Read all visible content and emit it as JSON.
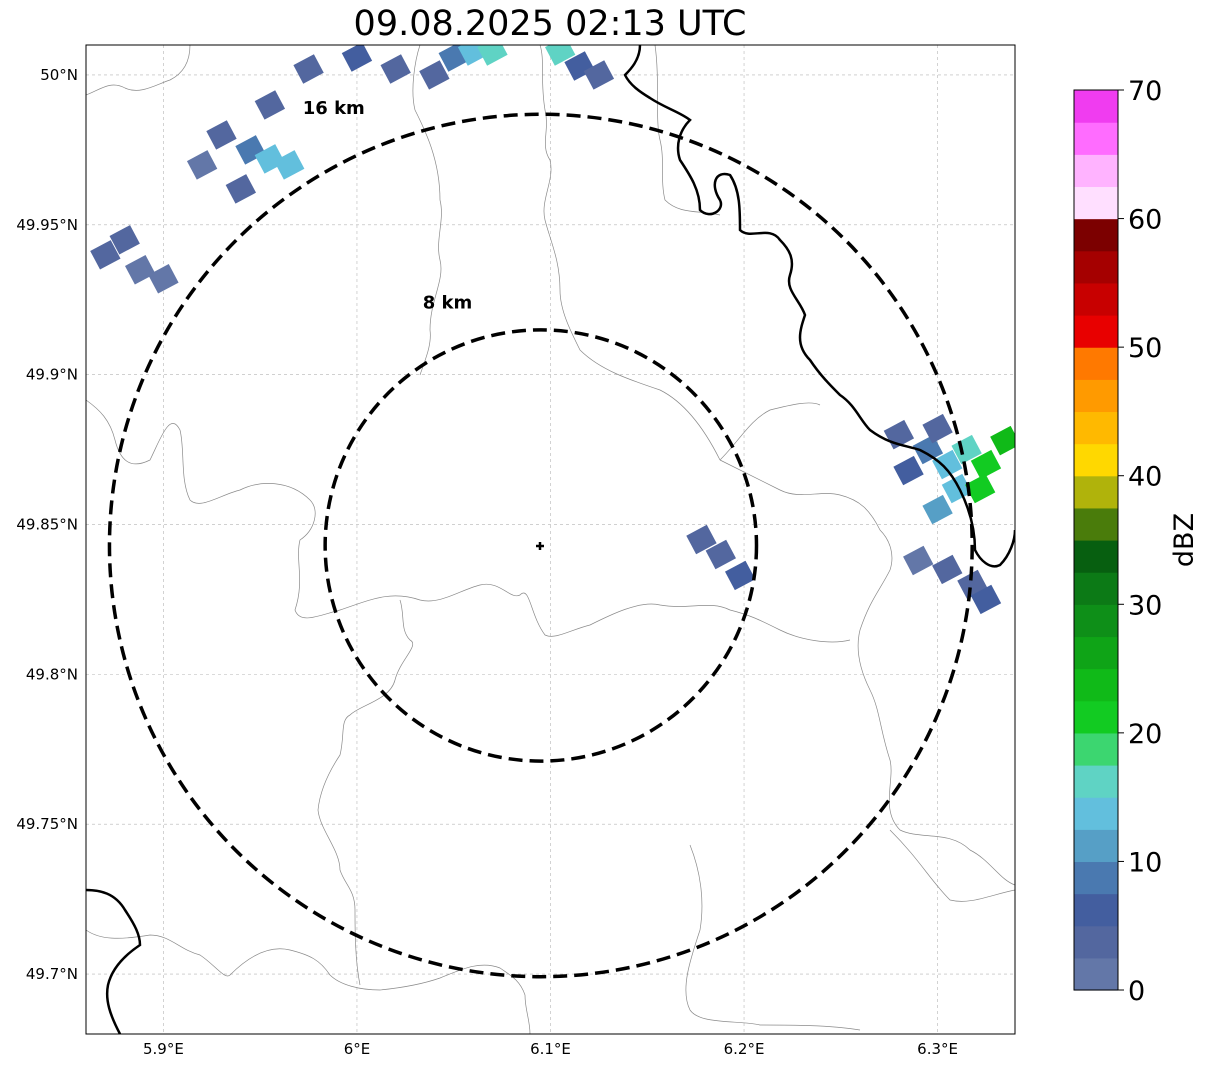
{
  "title": "09.08.2025 02:13 UTC",
  "map": {
    "lon_range": [
      5.86,
      6.34
    ],
    "lat_range": [
      49.68,
      50.01
    ],
    "lon_ticks": [
      {
        "v": 5.9,
        "label": "5.9°E"
      },
      {
        "v": 6.0,
        "label": "6°E"
      },
      {
        "v": 6.1,
        "label": "6.1°E"
      },
      {
        "v": 6.2,
        "label": "6.2°E"
      },
      {
        "v": 6.3,
        "label": "6.3°E"
      }
    ],
    "lat_ticks": [
      {
        "v": 50.0,
        "label": "50°N"
      },
      {
        "v": 49.95,
        "label": "49.95°N"
      },
      {
        "v": 49.9,
        "label": "49.9°N"
      },
      {
        "v": 49.85,
        "label": "49.85°N"
      },
      {
        "v": 49.8,
        "label": "49.8°N"
      },
      {
        "v": 49.75,
        "label": "49.75°N"
      },
      {
        "v": 49.7,
        "label": "49.7°N"
      }
    ],
    "center": {
      "lon": 6.095,
      "lat": 49.843
    },
    "rings": [
      {
        "km": 8,
        "label": "8 km",
        "label_lon": 6.034,
        "label_lat": 49.922
      },
      {
        "km": 16,
        "label": "16 km",
        "label_lon": 5.972,
        "label_lat": 49.987
      }
    ],
    "gridlines": true
  },
  "colorbar": {
    "label": "dBZ",
    "min": 0,
    "max": 70,
    "tick_values": [
      0,
      10,
      20,
      30,
      40,
      50,
      60,
      70
    ],
    "tick_labels": [
      "0",
      "10",
      "20",
      "30",
      "40",
      "50",
      "60",
      "70"
    ],
    "colors": [
      "#6377a8",
      "#53679f",
      "#435e9f",
      "#4a79b0",
      "#569fc6",
      "#62bfdd",
      "#5fd3c4",
      "#3cd670",
      "#12cb22",
      "#10ba18",
      "#0fa417",
      "#0e8f18",
      "#0c7a16",
      "#075f10",
      "#4a7c0b",
      "#b0b30b",
      "#ffd800",
      "#ffb900",
      "#ff9a00",
      "#ff7900",
      "#e80000",
      "#c80000",
      "#a50000",
      "#7c0000",
      "#ffdfff",
      "#ffb3ff",
      "#ff6cff",
      "#f03cf0"
    ]
  },
  "cells": [
    {
      "lon": 5.88,
      "lat": 49.945,
      "dbz": 4
    },
    {
      "lon": 5.87,
      "lat": 49.94,
      "dbz": 3
    },
    {
      "lon": 5.888,
      "lat": 49.935,
      "dbz": 2
    },
    {
      "lon": 5.9,
      "lat": 49.932,
      "dbz": 2
    },
    {
      "lon": 5.93,
      "lat": 49.98,
      "dbz": 4
    },
    {
      "lon": 5.945,
      "lat": 49.975,
      "dbz": 9
    },
    {
      "lon": 5.955,
      "lat": 49.972,
      "dbz": 13
    },
    {
      "lon": 5.965,
      "lat": 49.97,
      "dbz": 14
    },
    {
      "lon": 5.94,
      "lat": 49.962,
      "dbz": 3
    },
    {
      "lon": 5.92,
      "lat": 49.97,
      "dbz": 2
    },
    {
      "lon": 5.955,
      "lat": 49.99,
      "dbz": 3
    },
    {
      "lon": 5.975,
      "lat": 50.002,
      "dbz": 4
    },
    {
      "lon": 6.0,
      "lat": 50.006,
      "dbz": 5
    },
    {
      "lon": 6.02,
      "lat": 50.002,
      "dbz": 4
    },
    {
      "lon": 6.04,
      "lat": 50.0,
      "dbz": 3
    },
    {
      "lon": 6.05,
      "lat": 50.006,
      "dbz": 8
    },
    {
      "lon": 6.06,
      "lat": 50.008,
      "dbz": 13
    },
    {
      "lon": 6.07,
      "lat": 50.008,
      "dbz": 17
    },
    {
      "lon": 6.105,
      "lat": 50.008,
      "dbz": 17
    },
    {
      "lon": 6.115,
      "lat": 50.003,
      "dbz": 5
    },
    {
      "lon": 6.125,
      "lat": 50.0,
      "dbz": 3
    },
    {
      "lon": 6.178,
      "lat": 49.845,
      "dbz": 4
    },
    {
      "lon": 6.188,
      "lat": 49.84,
      "dbz": 3
    },
    {
      "lon": 6.198,
      "lat": 49.833,
      "dbz": 5
    },
    {
      "lon": 6.28,
      "lat": 49.88,
      "dbz": 3
    },
    {
      "lon": 6.285,
      "lat": 49.868,
      "dbz": 5
    },
    {
      "lon": 6.295,
      "lat": 49.875,
      "dbz": 8
    },
    {
      "lon": 6.3,
      "lat": 49.882,
      "dbz": 3
    },
    {
      "lon": 6.305,
      "lat": 49.87,
      "dbz": 13
    },
    {
      "lon": 6.31,
      "lat": 49.862,
      "dbz": 14
    },
    {
      "lon": 6.315,
      "lat": 49.875,
      "dbz": 16
    },
    {
      "lon": 6.325,
      "lat": 49.87,
      "dbz": 22
    },
    {
      "lon": 6.335,
      "lat": 49.878,
      "dbz": 23
    },
    {
      "lon": 6.322,
      "lat": 49.862,
      "dbz": 20
    },
    {
      "lon": 6.3,
      "lat": 49.855,
      "dbz": 12
    },
    {
      "lon": 6.29,
      "lat": 49.838,
      "dbz": 2
    },
    {
      "lon": 6.305,
      "lat": 49.835,
      "dbz": 4
    },
    {
      "lon": 6.318,
      "lat": 49.83,
      "dbz": 3
    },
    {
      "lon": 6.325,
      "lat": 49.825,
      "dbz": 5
    }
  ]
}
